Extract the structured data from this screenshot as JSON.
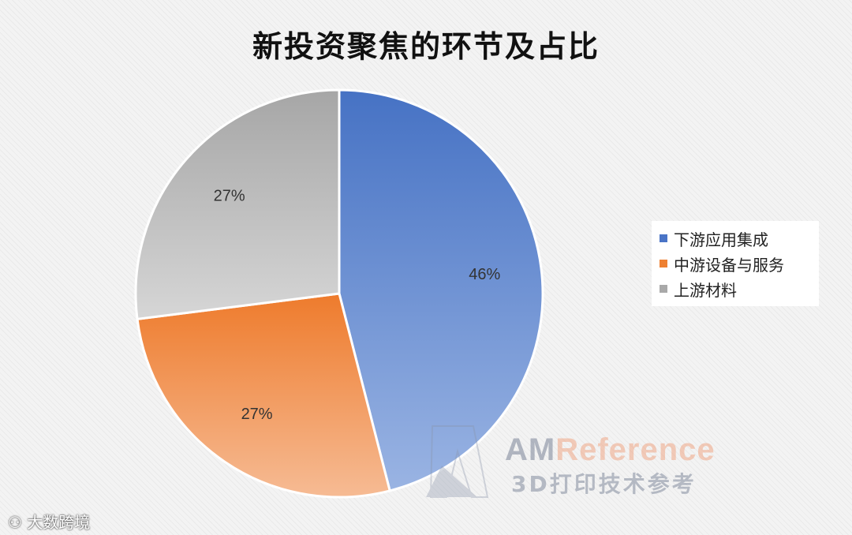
{
  "chart_data": {
    "type": "pie",
    "title": "新投资聚焦的环节及占比",
    "categories": [
      "下游应用集成",
      "中游设备与服务",
      "上游材料"
    ],
    "values": [
      46,
      27,
      27
    ],
    "labels": [
      "46%",
      "27%",
      "27%"
    ],
    "colors": [
      "#4a74c6",
      "#ee8032",
      "#a9a9a9"
    ],
    "legend_position": "right"
  },
  "watermark": {
    "logo_am": "AM",
    "logo_ref": "Reference",
    "subtitle": "3D打印技术参考"
  },
  "source": "大数跨境"
}
